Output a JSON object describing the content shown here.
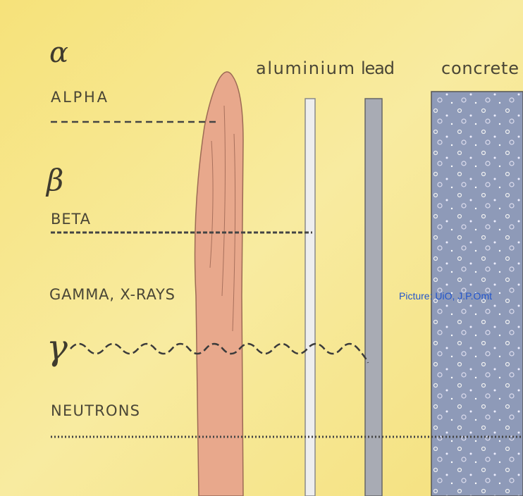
{
  "particles": [
    {
      "symbol": "α",
      "name": "ALPHA"
    },
    {
      "symbol": "β",
      "name": "BETA"
    },
    {
      "symbol": "γ",
      "name": "GAMMA, X-RAYS"
    },
    {
      "name": "NEUTRONS"
    }
  ],
  "materials": [
    "aluminium",
    "lead",
    "concrete"
  ],
  "credit": "Picture: UiO, J.P.Omt"
}
